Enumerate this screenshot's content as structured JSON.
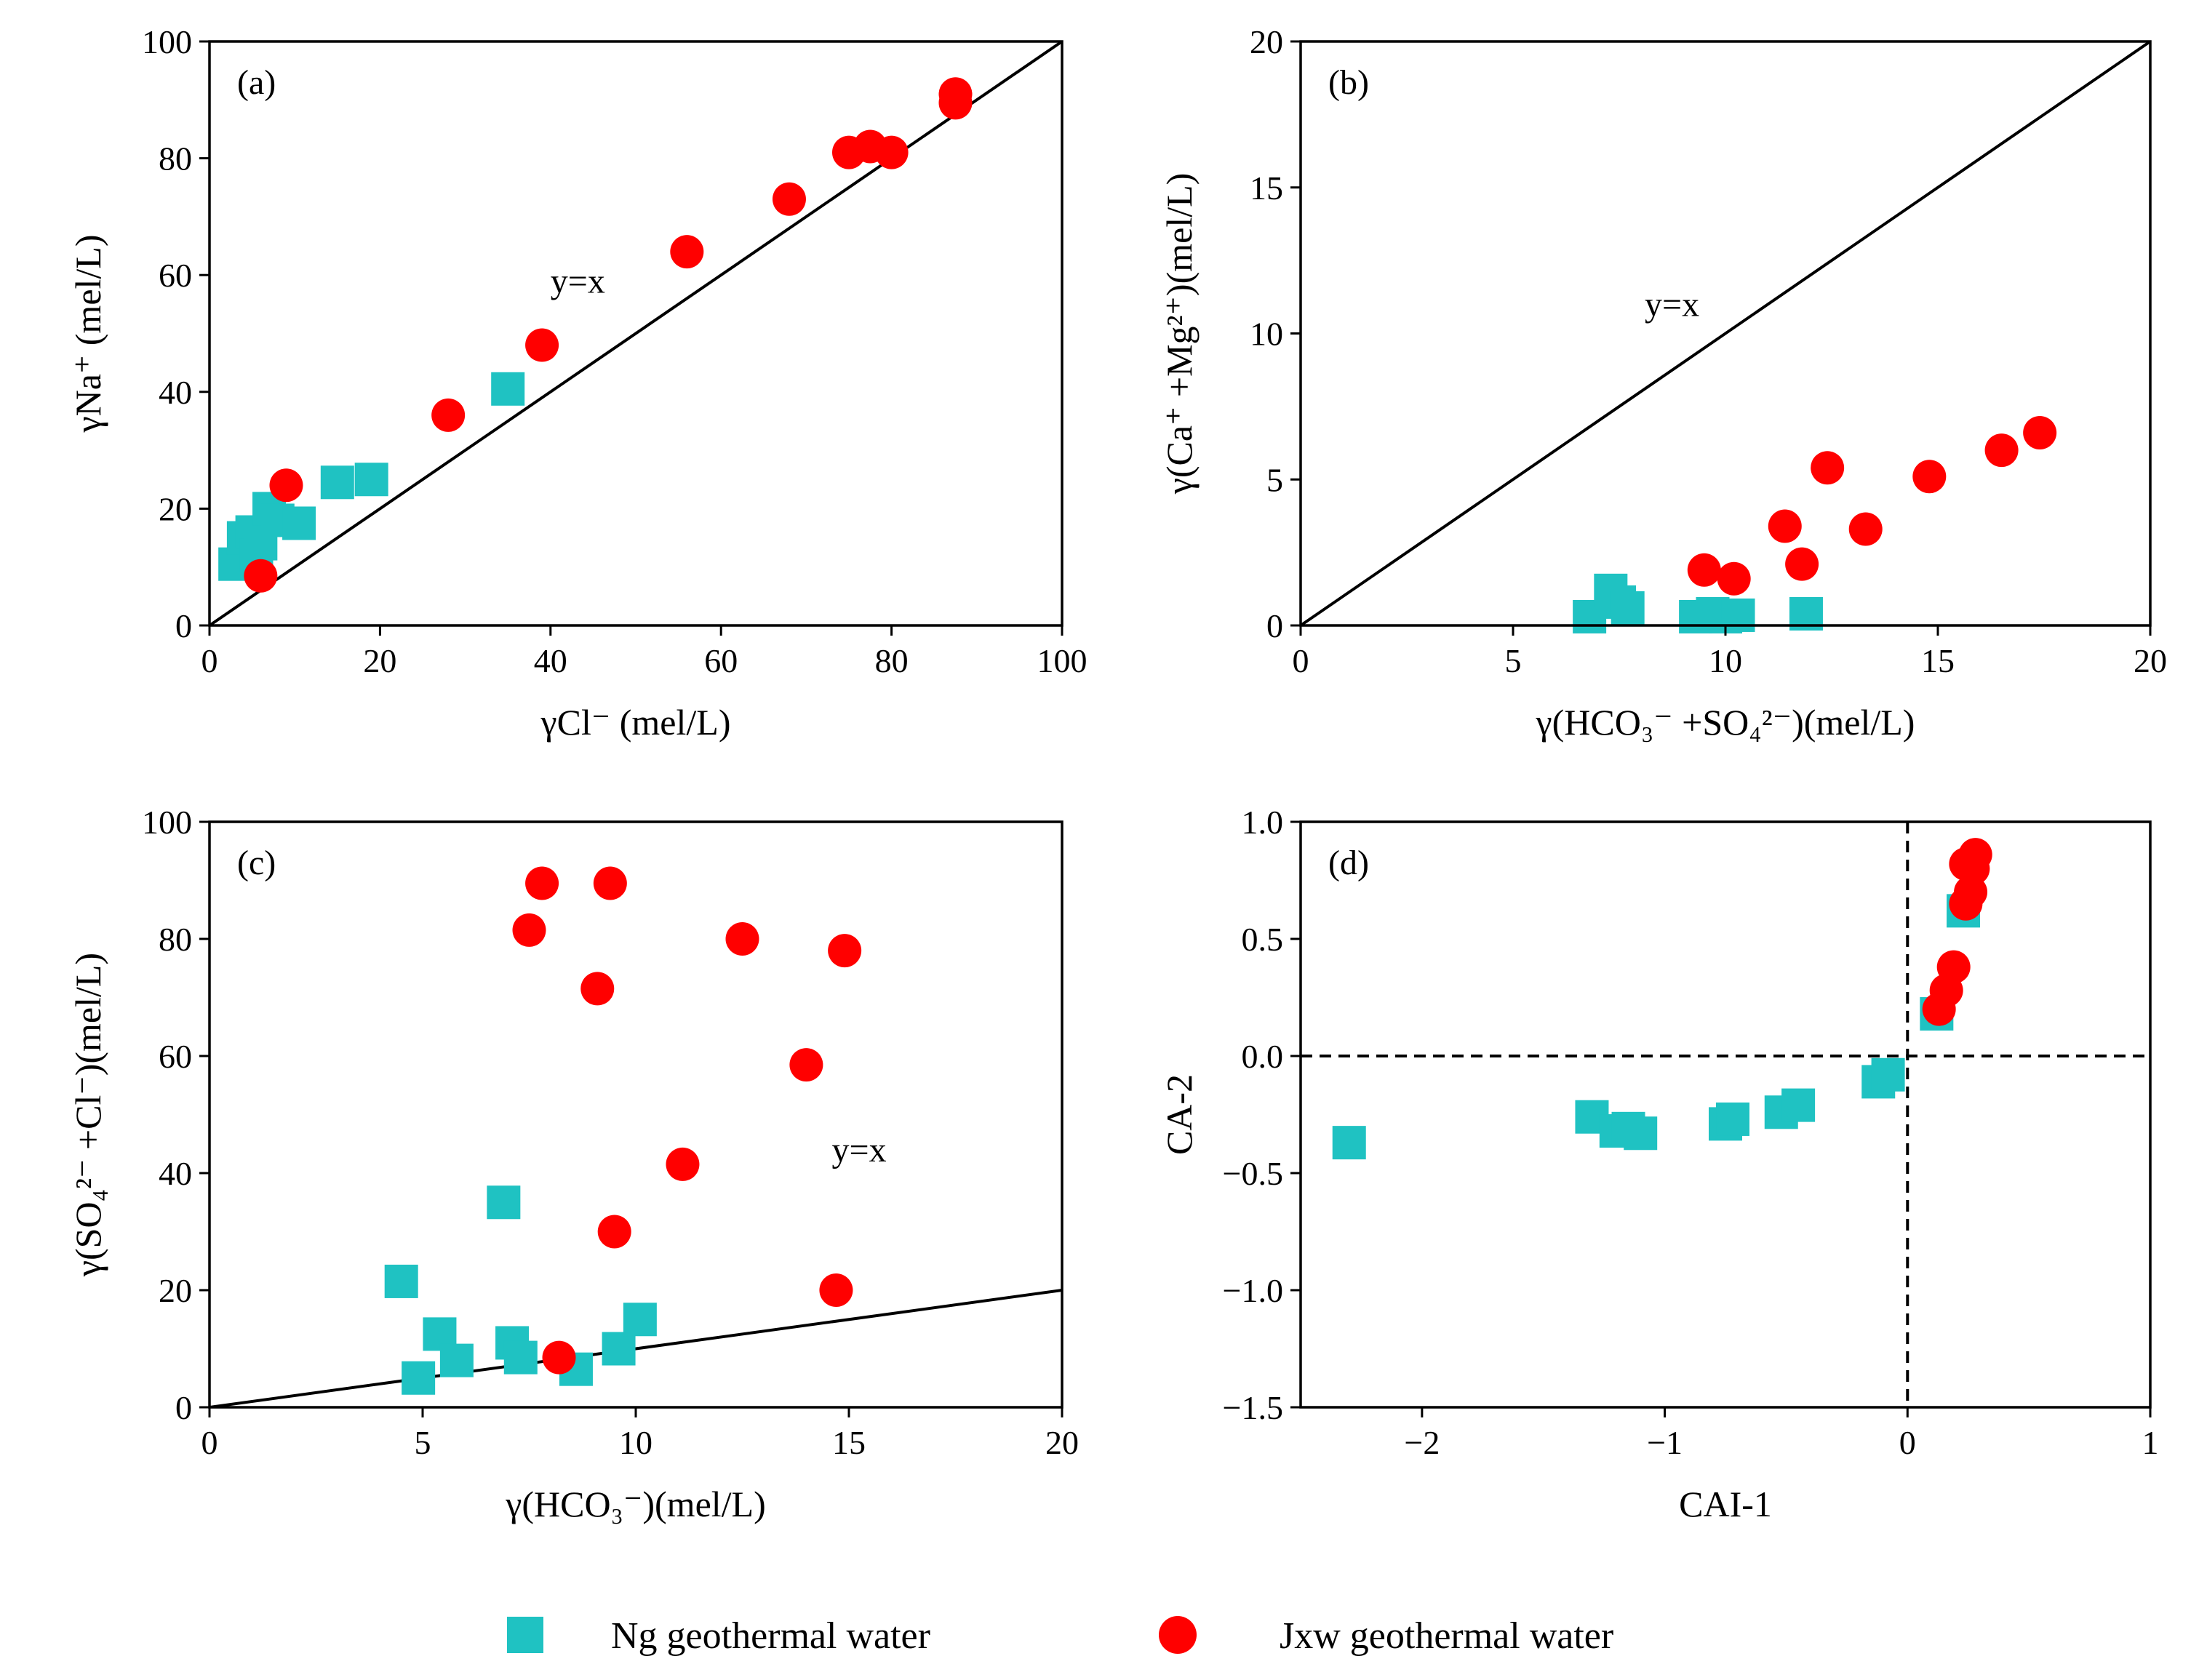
{
  "chart_data": [
    {
      "panel": "(a)",
      "type": "scatter",
      "xlabel": "γCl⁻ (mel/L)",
      "ylabel": "γNa⁺ (mel/L)",
      "xlim": [
        0,
        100
      ],
      "ylim": [
        0,
        100
      ],
      "xticks": [
        0,
        20,
        40,
        60,
        80,
        100
      ],
      "yticks": [
        0,
        20,
        40,
        60,
        80,
        100
      ],
      "xtick_labels": [
        "0",
        "20",
        "40",
        "60",
        "80",
        "100"
      ],
      "ytick_labels": [
        "0",
        "20",
        "40",
        "60",
        "80",
        "100"
      ],
      "reference_line": {
        "label": "y=x",
        "slope": 1,
        "label_at": [
          40,
          57
        ]
      },
      "series": [
        {
          "name": "Ng geothermal water",
          "marker": "square",
          "color": "#1fc2c2",
          "x": [
            3,
            4,
            5,
            5.5,
            6,
            7,
            8,
            10.5,
            15,
            19,
            35
          ],
          "y": [
            10.5,
            15,
            16,
            12,
            14,
            20,
            18,
            17.5,
            24.5,
            25,
            40.5
          ]
        },
        {
          "name": "Jxw geothermal water",
          "marker": "circle",
          "color": "#ff0000",
          "x": [
            6,
            9,
            28,
            39,
            56,
            68,
            75,
            77.5,
            80,
            87.5,
            87.5
          ],
          "y": [
            8.5,
            24,
            36,
            48,
            64,
            73,
            81,
            82,
            81,
            89.5,
            91
          ]
        }
      ]
    },
    {
      "panel": "(b)",
      "type": "scatter",
      "xlabel": "γ(HCO₃⁻ +SO₄²⁻)(mel/L)",
      "ylabel": "γ(Ca⁺ +Mg²⁺)(mel/L)",
      "xlim": [
        0,
        20
      ],
      "ylim": [
        0,
        20
      ],
      "xticks": [
        0,
        5,
        10,
        15,
        20
      ],
      "yticks": [
        0,
        5,
        10,
        15,
        20
      ],
      "xtick_labels": [
        "0",
        "5",
        "10",
        "15",
        "20"
      ],
      "ytick_labels": [
        "0",
        "5",
        "10",
        "15",
        "20"
      ],
      "reference_line": {
        "label": "y=x",
        "slope": 1,
        "label_at": [
          8.1,
          10.6
        ]
      },
      "series": [
        {
          "name": "Ng geothermal water",
          "marker": "square",
          "color": "#1fc2c2",
          "x": [
            6.8,
            7.3,
            7.5,
            7.7,
            9.3,
            9.7,
            10,
            10.3,
            11.9
          ],
          "y": [
            0.3,
            1.2,
            0.8,
            0.6,
            0.3,
            0.4,
            0.3,
            0.35,
            0.4
          ]
        },
        {
          "name": "Jxw geothermal water",
          "marker": "circle",
          "color": "#ff0000",
          "x": [
            9.5,
            10.2,
            11.4,
            11.8,
            12.4,
            13.3,
            14.8,
            16.5,
            17.4
          ],
          "y": [
            1.9,
            1.6,
            3.4,
            2.1,
            5.4,
            3.3,
            5.1,
            6.0,
            6.6
          ]
        }
      ]
    },
    {
      "panel": "(c)",
      "type": "scatter",
      "xlabel": "γ(HCO₃⁻)(mel/L)",
      "ylabel": "γ(SO₄²⁻ +Cl⁻)(mel/L)",
      "xlim": [
        0,
        20
      ],
      "ylim": [
        0,
        100
      ],
      "xticks": [
        0,
        5,
        10,
        15,
        20
      ],
      "yticks": [
        0,
        20,
        40,
        60,
        80,
        100
      ],
      "xtick_labels": [
        "0",
        "5",
        "10",
        "15",
        "20"
      ],
      "ytick_labels": [
        "0",
        "20",
        "40",
        "60",
        "80",
        "100"
      ],
      "reference_line": {
        "label": "y=x",
        "slope": 1,
        "label_at": [
          14.6,
          42
        ]
      },
      "series": [
        {
          "name": "Ng geothermal water",
          "marker": "square",
          "color": "#1fc2c2",
          "x": [
            4.5,
            4.9,
            5.4,
            5.8,
            6.9,
            7.1,
            7.3,
            8.6,
            9.6,
            10.1
          ],
          "y": [
            21.5,
            5,
            12.5,
            8,
            35,
            11,
            8.5,
            6.5,
            10,
            15
          ]
        },
        {
          "name": "Jxw geothermal water",
          "marker": "circle",
          "color": "#ff0000",
          "x": [
            7.5,
            7.8,
            8.2,
            9.1,
            9.4,
            9.5,
            11.1,
            12.5,
            14,
            14.7,
            14.9
          ],
          "y": [
            81.5,
            89.5,
            8.5,
            71.5,
            89.5,
            30,
            41.5,
            80,
            58.5,
            20,
            78
          ]
        }
      ]
    },
    {
      "panel": "(d)",
      "type": "scatter",
      "xlabel": "CAI-1",
      "ylabel": "CA-2",
      "xlim": [
        -2.5,
        1
      ],
      "ylim": [
        -1.5,
        1
      ],
      "xticks": [
        -2,
        -1,
        0,
        1
      ],
      "yticks": [
        -1.5,
        -1.0,
        -0.5,
        0.0,
        0.5,
        1.0
      ],
      "xtick_labels": [
        "−2",
        "−1",
        "0",
        "1"
      ],
      "ytick_labels": [
        "−1.5",
        "−1.0",
        "−0.5",
        "0.0",
        "0.5",
        "1.0"
      ],
      "zero_lines": "dashed",
      "series": [
        {
          "name": "Ng geothermal water",
          "marker": "square",
          "color": "#1fc2c2",
          "x": [
            -2.3,
            -1.3,
            -1.2,
            -1.15,
            -1.1,
            -0.75,
            -0.72,
            -0.52,
            -0.45,
            -0.12,
            -0.08,
            0.12,
            0.23
          ],
          "y": [
            -0.37,
            -0.26,
            -0.32,
            -0.31,
            -0.33,
            -0.29,
            -0.27,
            -0.24,
            -0.21,
            -0.11,
            -0.08,
            0.18,
            0.62
          ]
        },
        {
          "name": "Jxw geothermal water",
          "marker": "circle",
          "color": "#ff0000",
          "x": [
            0.13,
            0.16,
            0.19,
            0.24,
            0.26,
            0.27,
            0.24,
            0.28
          ],
          "y": [
            0.2,
            0.28,
            0.38,
            0.65,
            0.7,
            0.8,
            0.82,
            0.86
          ]
        }
      ]
    }
  ],
  "legend": {
    "position": "bottom-center",
    "items": [
      {
        "label": "Ng geothermal water",
        "marker": "square",
        "color": "#1fc2c2"
      },
      {
        "label": "Jxw geothermal water",
        "marker": "circle",
        "color": "#ff0000"
      }
    ]
  }
}
